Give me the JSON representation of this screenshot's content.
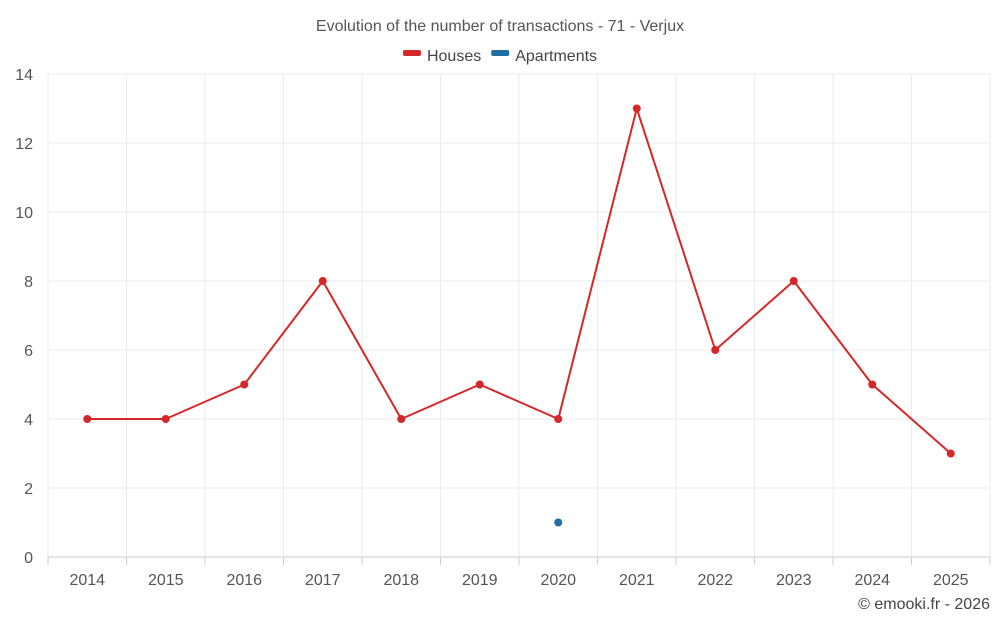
{
  "chart_data": {
    "type": "line",
    "title": "Evolution of the number of transactions - 71 - Verjux",
    "categories": [
      "2014",
      "2015",
      "2016",
      "2017",
      "2018",
      "2019",
      "2020",
      "2021",
      "2022",
      "2023",
      "2024",
      "2025"
    ],
    "series": [
      {
        "name": "Houses",
        "color": "#d62728",
        "values": [
          4,
          4,
          5,
          8,
          4,
          5,
          4,
          13,
          6,
          8,
          5,
          3
        ]
      },
      {
        "name": "Apartments",
        "color": "#1f6fa5",
        "values": [
          null,
          null,
          null,
          null,
          null,
          null,
          1,
          null,
          null,
          null,
          null,
          null
        ]
      }
    ],
    "ylim": [
      0,
      14
    ],
    "yticks": [
      0,
      2,
      4,
      6,
      8,
      10,
      12,
      14
    ],
    "xlabel": "",
    "ylabel": "",
    "grid": true,
    "legend_position": "top-center"
  },
  "credit": "© emooki.fr - 2026"
}
